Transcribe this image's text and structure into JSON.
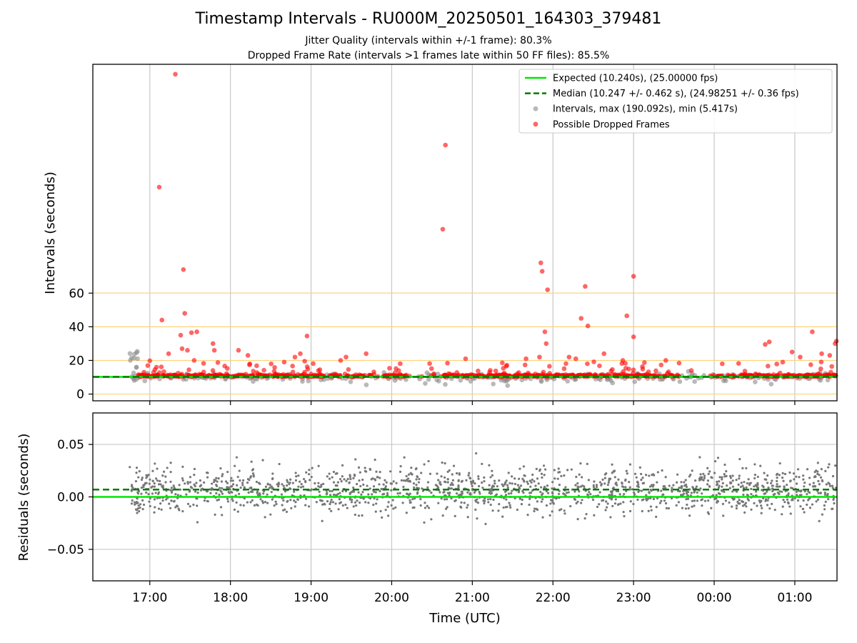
{
  "chart_data": [
    {
      "type": "scatter",
      "title": "Timestamp Intervals - RU000M_20250501_164303_379481",
      "subtitle_lines": [
        "Jitter Quality (intervals within +/-1 frame): 80.3%",
        "Dropped Frame Rate (intervals >1 frames late within 50 FF files): 85.5%"
      ],
      "ylabel": "Intervals (seconds)",
      "ylim": [
        -4,
        196
      ],
      "yticks": [
        0,
        20,
        40,
        60
      ],
      "hlines_color": "#ffd27a",
      "grid_x": true,
      "legend_position": "upper right",
      "legend": [
        {
          "label": "Expected (10.240s), (25.00000 fps)",
          "kind": "solid-line",
          "color": "#00e600"
        },
        {
          "label": "Median (10.247 +/- 0.462 s), (24.98251 +/- 0.36 fps)",
          "kind": "dashed-line",
          "color": "#007a00"
        },
        {
          "label": "Intervals, max (190.092s), min (5.417s)",
          "kind": "dot",
          "color": "#8a8a8a"
        },
        {
          "label": "Possible Dropped Frames",
          "kind": "dot",
          "color": "#ff0000"
        }
      ],
      "expected": 10.24,
      "median": 10.247,
      "dropped_frames_outliers": [
        {
          "x": "17:00",
          "y": 19.8
        },
        {
          "x": "17:05",
          "y": 16.0
        },
        {
          "x": "17:07",
          "y": 123.0
        },
        {
          "x": "17:09",
          "y": 44.0
        },
        {
          "x": "17:14",
          "y": 24.0
        },
        {
          "x": "17:19",
          "y": 190.1
        },
        {
          "x": "17:23",
          "y": 35.0
        },
        {
          "x": "17:24",
          "y": 27.0
        },
        {
          "x": "17:25",
          "y": 74.0
        },
        {
          "x": "17:26",
          "y": 48.0
        },
        {
          "x": "17:28",
          "y": 26.0
        },
        {
          "x": "17:31",
          "y": 36.5
        },
        {
          "x": "17:33",
          "y": 20.0
        },
        {
          "x": "17:35",
          "y": 37.0
        },
        {
          "x": "17:47",
          "y": 30.0
        },
        {
          "x": "17:48",
          "y": 26.0
        },
        {
          "x": "18:06",
          "y": 26.0
        },
        {
          "x": "18:13",
          "y": 23.0
        },
        {
          "x": "18:40",
          "y": 19.0
        },
        {
          "x": "18:48",
          "y": 22.0
        },
        {
          "x": "18:52",
          "y": 24.0
        },
        {
          "x": "18:57",
          "y": 34.5
        },
        {
          "x": "19:22",
          "y": 20.0
        },
        {
          "x": "19:26",
          "y": 22.0
        },
        {
          "x": "19:41",
          "y": 24.0
        },
        {
          "x": "20:38",
          "y": 98.0
        },
        {
          "x": "20:40",
          "y": 148.0
        },
        {
          "x": "20:55",
          "y": 21.0
        },
        {
          "x": "21:40",
          "y": 21.0
        },
        {
          "x": "21:50",
          "y": 22.0
        },
        {
          "x": "21:51",
          "y": 78.0
        },
        {
          "x": "21:52",
          "y": 73.0
        },
        {
          "x": "21:54",
          "y": 37.0
        },
        {
          "x": "21:55",
          "y": 30.0
        },
        {
          "x": "21:56",
          "y": 62.0
        },
        {
          "x": "22:12",
          "y": 22.0
        },
        {
          "x": "22:17",
          "y": 21.0
        },
        {
          "x": "22:21",
          "y": 45.0
        },
        {
          "x": "22:24",
          "y": 64.0
        },
        {
          "x": "22:26",
          "y": 40.5
        },
        {
          "x": "22:38",
          "y": 24.0
        },
        {
          "x": "22:52",
          "y": 20.0
        },
        {
          "x": "22:55",
          "y": 46.5
        },
        {
          "x": "23:00",
          "y": 34.0
        },
        {
          "x": "23:00",
          "y": 70.0
        },
        {
          "x": "23:24",
          "y": 20.0
        },
        {
          "x": "23:43",
          "y": 14.0
        },
        {
          "x": "00:06",
          "y": 18.0
        },
        {
          "x": "00:38",
          "y": 29.5
        },
        {
          "x": "00:41",
          "y": 31.0
        },
        {
          "x": "00:51",
          "y": 19.0
        },
        {
          "x": "00:58",
          "y": 25.0
        },
        {
          "x": "01:04",
          "y": 22.0
        },
        {
          "x": "01:13",
          "y": 37.0
        },
        {
          "x": "01:20",
          "y": 24.0
        },
        {
          "x": "01:26",
          "y": 23.0
        },
        {
          "x": "01:30",
          "y": 30.0
        },
        {
          "x": "01:31",
          "y": 31.5
        }
      ]
    },
    {
      "type": "scatter",
      "ylabel": "Residuals (seconds)",
      "xlabel": "Time (UTC)",
      "ylim": [
        -0.08,
        0.08
      ],
      "yticks": [
        "0.05",
        "0.00",
        "−0.05"
      ],
      "ytick_values": [
        0.05,
        0.0,
        -0.05
      ],
      "xticks": [
        "17:00",
        "18:00",
        "19:00",
        "20:00",
        "21:00",
        "22:00",
        "23:00",
        "00:00",
        "01:00"
      ],
      "expected_residual": 0.0,
      "median_residual": 0.007,
      "grid": true,
      "point_color": "#777777",
      "note_points": "approx. 1600 interval residual samples between 16:45 and 01:31 UTC, spread roughly ±0.03 s around 0.007 s"
    }
  ],
  "colors": {
    "dropped": "#ff0000",
    "interval": "#8a8a8a",
    "expected": "#00e600",
    "median": "#007a00",
    "axis": "#000000",
    "grid": "#c8c8c8"
  }
}
